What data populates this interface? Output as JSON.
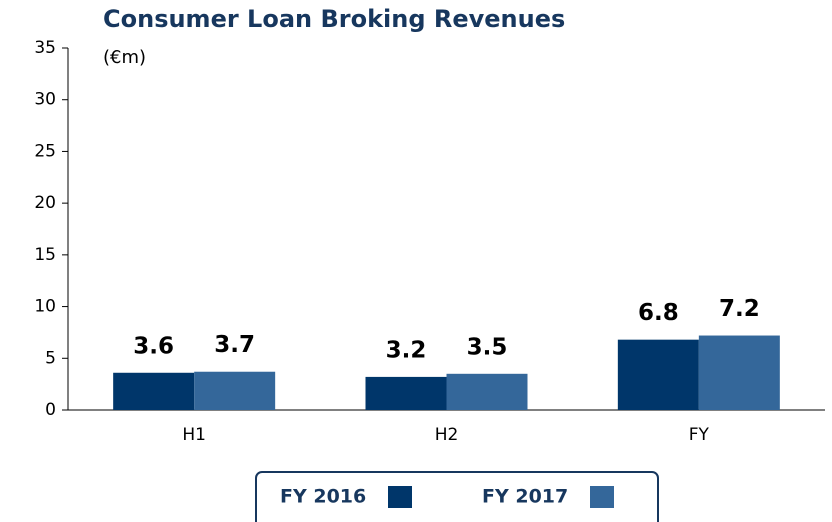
{
  "chart_data": {
    "type": "bar",
    "title": "Consumer Loan Broking Revenues",
    "subtitle": "(€m)",
    "categories": [
      "H1",
      "H2",
      "FY"
    ],
    "series": [
      {
        "name": "FY 2016",
        "color": "#00366a",
        "values": [
          3.6,
          3.2,
          6.8
        ]
      },
      {
        "name": "FY 2017",
        "color": "#34679a",
        "values": [
          3.7,
          3.5,
          7.2
        ]
      }
    ],
    "ylim": [
      0,
      35
    ],
    "yticks": [
      0,
      5,
      10,
      15,
      20,
      25,
      30,
      35
    ],
    "grid": false,
    "legend": "bottom"
  }
}
